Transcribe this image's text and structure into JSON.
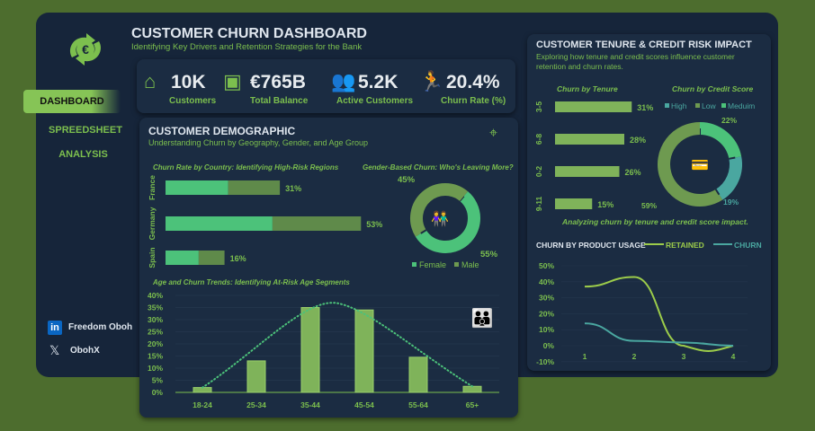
{
  "header": {
    "title": "CUSTOMER CHURN DASHBOARD",
    "subtitle": "Identifying Key Drivers and Retention Strategies for the Bank"
  },
  "kpis": [
    {
      "value": "10K",
      "label": "Customers",
      "icon": "customers-house-icon"
    },
    {
      "value": "€765B",
      "label": "Total Balance",
      "icon": "wallet-icon"
    },
    {
      "value": "5.2K",
      "label": "Active Customers",
      "icon": "users-icon"
    },
    {
      "value": "20.4%",
      "label": "Churn Rate (%)",
      "icon": "exit-icon"
    }
  ],
  "nav": {
    "items": [
      {
        "label": "DASHBOARD",
        "active": true
      },
      {
        "label": "SPREEDSHEET"
      },
      {
        "label": "ANALYSIS"
      }
    ]
  },
  "social": {
    "linkedin": "Freedom Oboh",
    "x": "ObohX"
  },
  "demographic": {
    "title": "CUSTOMER DEMOGRAPHIC",
    "subtitle": "Understanding Churn by Geography, Gender, and Age Group"
  },
  "colors": {
    "bg": "#4d6d2e",
    "panel": "#16253a",
    "card": "#1b2c42",
    "accent": "#7cbf4e",
    "bright": "#4cc27a",
    "olive": "#5f8a4a",
    "teal": "#4aa7a0"
  },
  "chart_data": [
    {
      "type": "bar",
      "title": "Churn Rate by Country: Identifying High-Risk Regions",
      "orientation": "horizontal",
      "categories": [
        "France",
        "Germany",
        "Spain"
      ],
      "values": [
        31,
        53,
        16
      ],
      "labels": [
        "31%",
        "53%",
        "16%"
      ],
      "segments": [
        [
          17,
          14
        ],
        [
          29,
          24
        ],
        [
          9,
          7
        ]
      ]
    },
    {
      "type": "pie",
      "title": "Gender-Based Churn: Who's Leaving More?",
      "donut": true,
      "slices": [
        {
          "name": "Female",
          "value": 55,
          "label": "55%",
          "color": "#4cc27a"
        },
        {
          "name": "Male",
          "value": 45,
          "label": "45%",
          "color": "#6e9a50"
        }
      ]
    },
    {
      "type": "bar",
      "title": "Age and Churn Trends: Identifying At-Risk Age Segments",
      "categories": [
        "18-24",
        "25-34",
        "35-44",
        "45-54",
        "55-64",
        "65+"
      ],
      "values": [
        2,
        13,
        35,
        34,
        14.5,
        2.5
      ],
      "ylim": [
        0,
        40
      ],
      "yticks": [
        "0%",
        "5%",
        "10%",
        "15%",
        "20%",
        "25%",
        "30%",
        "35%",
        "40%"
      ],
      "trendline": "dotted",
      "grid": true
    },
    {
      "type": "bar",
      "title": "Churn by Tenure",
      "orientation": "horizontal",
      "categories": [
        "3-5",
        "6-8",
        "0-2",
        "9-11"
      ],
      "values": [
        31,
        28,
        26,
        15
      ],
      "labels": [
        "31%",
        "28%",
        "26%",
        "15%"
      ]
    },
    {
      "type": "pie",
      "title": "Churn by Credit Score",
      "donut": true,
      "slices": [
        {
          "name": "Meduim",
          "value": 22,
          "label": "22%",
          "color": "#4cc27a"
        },
        {
          "name": "High",
          "value": 19,
          "label": "19%",
          "color": "#4aa7a0"
        },
        {
          "name": "Low",
          "value": 59,
          "label": "59%",
          "color": "#6e9a50"
        }
      ],
      "legend": [
        "High",
        "Low",
        "Meduim"
      ],
      "caption": "Analyzing churn by tenure and credit score impact."
    },
    {
      "type": "line",
      "title": "CHURN BY PRODUCT USAGE",
      "x": [
        1,
        2,
        3,
        4
      ],
      "series": [
        {
          "name": "RETAINED",
          "values": [
            37,
            43,
            0,
            0
          ],
          "color": "#9ccc4a"
        },
        {
          "name": "CHURN",
          "values": [
            14,
            3,
            2,
            0
          ],
          "color": "#4aa7a0"
        }
      ],
      "ylim": [
        -10,
        50
      ],
      "yticks": [
        "-10%",
        "0%",
        "10%",
        "20%",
        "30%",
        "40%",
        "50%"
      ],
      "xticks": [
        "1",
        "2",
        "3",
        "4"
      ],
      "legend": "top-right"
    }
  ],
  "tenure": {
    "title": "CUSTOMER TENURE & CREDIT RISK IMPACT",
    "subtitle": "Exploring how tenure and credit scores influence customer retention and churn rates."
  }
}
